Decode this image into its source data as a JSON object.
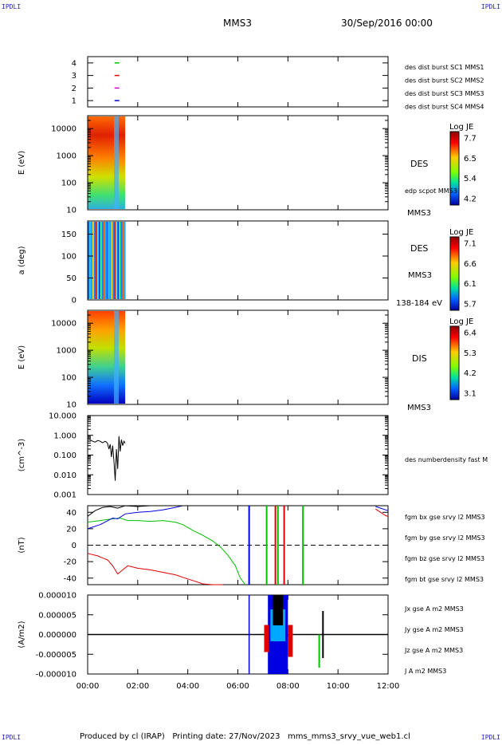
{
  "header": {
    "corner_tl": "IPDLI",
    "corner_tr": "IPDLI",
    "corner_bl": "IPDLI",
    "corner_br": "IPDLI",
    "title": "MMS3",
    "date": "30/Sep/2016 00:00"
  },
  "footer": {
    "text": "Produced by cl (IRAP)   Printing date: 27/Nov/2023   mms_mms3_srvy_vue_web1.cl"
  },
  "colors": {
    "mms1": "#0000c0",
    "mms2": "#d000d0",
    "mms3": "#e00000",
    "mms4": "#00c000",
    "bx": "#e00000",
    "by": "#00c000",
    "bz": "#0000e0",
    "bt": "#000000"
  },
  "chart_data": [
    {
      "type": "scatter",
      "id": "burst",
      "ylim": [
        0.5,
        4.5
      ],
      "yticks": [
        "1",
        "2",
        "3",
        "4"
      ],
      "ytick_values": [
        1,
        2,
        3,
        4
      ],
      "marks": [
        {
          "x": 1.17,
          "y": 4,
          "color": "#00c000"
        },
        {
          "x": 1.17,
          "y": 3,
          "color": "#e00000"
        },
        {
          "x": 1.17,
          "y": 2,
          "color": "#d000d0"
        },
        {
          "x": 1.17,
          "y": 1,
          "color": "#0000c0"
        }
      ],
      "legend": [
        {
          "label": "des dist burst SC1 MMS1",
          "color": "#0000c0"
        },
        {
          "label": "des dist burst SC2 MMS2",
          "color": "#d000d0"
        },
        {
          "label": "des dist burst SC3 MMS3",
          "color": "#e00000"
        },
        {
          "label": "des dist burst SC4 MMS4",
          "color": "#00c000"
        }
      ]
    },
    {
      "type": "heatmap",
      "id": "des_energy",
      "ylabel": "E (eV)",
      "scale": "log",
      "ylim": [
        10,
        30000
      ],
      "yticks": [
        "10",
        "100",
        "1000",
        "10000"
      ],
      "ytick_values": [
        10,
        100,
        1000,
        10000
      ],
      "data_span_hours": [
        0,
        1.5
      ],
      "labels": [
        "DES",
        "edp scpot MMS3",
        "MMS3"
      ],
      "colorbar": {
        "title": "Log JE",
        "ticks": [
          "7.7",
          "6.5",
          "5.4",
          "4.2"
        ]
      }
    },
    {
      "type": "heatmap",
      "id": "des_pitch",
      "ylabel": "a (deg)",
      "ylim": [
        0,
        180
      ],
      "yticks": [
        "0",
        "50",
        "100",
        "150"
      ],
      "ytick_values": [
        0,
        50,
        100,
        150
      ],
      "data_span_hours": [
        0,
        1.5
      ],
      "labels": [
        "DES",
        "MMS3",
        "138-184 eV"
      ],
      "colorbar": {
        "title": "Log JE",
        "ticks": [
          "7.1",
          "6.6",
          "6.1",
          "5.7"
        ]
      }
    },
    {
      "type": "heatmap",
      "id": "dis_energy",
      "ylabel": "E (eV)",
      "scale": "log",
      "ylim": [
        10,
        30000
      ],
      "yticks": [
        "10",
        "100",
        "1000",
        "10000"
      ],
      "ytick_values": [
        10,
        100,
        1000,
        10000
      ],
      "data_span_hours": [
        0,
        1.5
      ],
      "labels": [
        "DIS",
        "MMS3"
      ],
      "colorbar": {
        "title": "Log JE",
        "ticks": [
          "6.4",
          "5.3",
          "4.2",
          "3.1"
        ]
      }
    },
    {
      "type": "line",
      "id": "density",
      "ylabel": "(cm^-3)",
      "scale": "log",
      "ylim": [
        0.001,
        10
      ],
      "yticks": [
        "0.001",
        "0.010",
        "0.100",
        "1.000",
        "10.000"
      ],
      "ytick_values": [
        0.001,
        0.01,
        0.1,
        1,
        10
      ],
      "series": [
        {
          "name": "des numberdensity fast M",
          "color": "#000000",
          "x": [
            0.08,
            0.2,
            0.3,
            0.4,
            0.5,
            0.6,
            0.7,
            0.75,
            0.8,
            0.85,
            0.9,
            0.95,
            1.0,
            1.05,
            1.1,
            1.15,
            1.2,
            1.25,
            1.3,
            1.35,
            1.4,
            1.45,
            1.5
          ],
          "y": [
            0.6,
            0.5,
            0.45,
            0.55,
            0.5,
            0.42,
            0.5,
            0.45,
            0.38,
            0.2,
            0.35,
            0.08,
            0.3,
            0.05,
            0.005,
            0.2,
            0.02,
            0.9,
            0.15,
            0.6,
            0.3,
            0.5,
            0.4
          ]
        }
      ]
    },
    {
      "type": "line",
      "id": "fgm",
      "ylabel": "(nT)",
      "ylim": [
        -48,
        48
      ],
      "yticks": [
        "-40",
        "-20",
        "0",
        "20",
        "40"
      ],
      "ytick_values": [
        -40,
        -20,
        0,
        20,
        40
      ],
      "zero_line": true,
      "series": [
        {
          "name": "fgm bx gse srvy l2 MMS3",
          "color": "#e00000",
          "x": [
            0,
            0.4,
            0.8,
            1.0,
            1.2,
            1.4,
            1.6,
            2.0,
            2.5,
            3.0,
            3.5,
            3.9,
            4.2,
            4.6,
            5.0,
            5.4,
            11.5,
            11.7,
            11.9,
            12.0
          ],
          "y": [
            -10,
            -13,
            -18,
            -25,
            -35,
            -30,
            -25,
            -28,
            -30,
            -33,
            -36,
            -40,
            -43,
            -47,
            -49,
            -50,
            44,
            40,
            36,
            35
          ]
        },
        {
          "name": "fgm by gse srvy l2 MMS3",
          "color": "#00c000",
          "x": [
            0,
            0.5,
            1.0,
            1.3,
            1.6,
            2.0,
            2.5,
            3.0,
            3.5,
            3.8,
            4.2,
            4.6,
            5.0,
            5.3,
            5.6,
            5.9,
            6.1,
            6.3
          ],
          "y": [
            28,
            30,
            32,
            33,
            30,
            30,
            29,
            30,
            28,
            25,
            18,
            12,
            5,
            -2,
            -12,
            -25,
            -40,
            -48
          ]
        },
        {
          "name": "fgm bz gse srvy l2 MMS3",
          "color": "#0000e0",
          "x": [
            0,
            0.5,
            1.0,
            1.2,
            1.5,
            2.0,
            2.5,
            3.0,
            3.5,
            3.8,
            11.5,
            11.7,
            11.9,
            12.0
          ],
          "y": [
            20,
            25,
            33,
            32,
            38,
            40,
            41,
            43,
            46,
            48,
            47,
            45,
            43,
            42
          ]
        },
        {
          "name": "fgm bt gse srvy l2 MMS3",
          "color": "#000000",
          "x": [
            0,
            0.3,
            0.6,
            0.9,
            1.2,
            1.5,
            2.0,
            2.5,
            3.0,
            3.5,
            3.8
          ],
          "y": [
            35,
            42,
            46,
            47,
            45,
            48,
            47,
            48,
            48,
            48,
            48
          ]
        }
      ],
      "spikes": [
        {
          "x": 6.45,
          "color": "#0000e0"
        },
        {
          "x": 7.15,
          "color": "#00c000"
        },
        {
          "x": 7.5,
          "color": "#e00000"
        },
        {
          "x": 7.6,
          "color": "#00c000"
        },
        {
          "x": 7.85,
          "color": "#e00000"
        },
        {
          "x": 8.6,
          "color": "#00c000"
        }
      ]
    },
    {
      "type": "line",
      "id": "current",
      "ylabel": "(A/m2)",
      "ylim": [
        -1e-05,
        1e-05
      ],
      "yticks": [
        "-0.000010",
        "-0.000005",
        "0.000000",
        "0.000005",
        "0.000010"
      ],
      "ytick_values": [
        -1e-05,
        -5e-06,
        0,
        5e-06,
        1e-05
      ],
      "series": [
        {
          "name": "Jx gse A m2 MMS3",
          "color": "#e00000"
        },
        {
          "name": "Jy gse A m2 MMS3",
          "color": "#00c000"
        },
        {
          "name": "Jz gse A m2 MMS3",
          "color": "#0000e0"
        },
        {
          "name": "J A m2 MMS3",
          "color": "#000000"
        }
      ],
      "active_span_hours": [
        6.45,
        9.4
      ]
    }
  ],
  "xaxis": {
    "ticks": [
      "00:00",
      "02:00",
      "04:00",
      "06:00",
      "08:00",
      "10:00",
      "12:00"
    ],
    "tick_hours": [
      0,
      2,
      4,
      6,
      8,
      10,
      12
    ],
    "range_hours": [
      0,
      12
    ]
  }
}
